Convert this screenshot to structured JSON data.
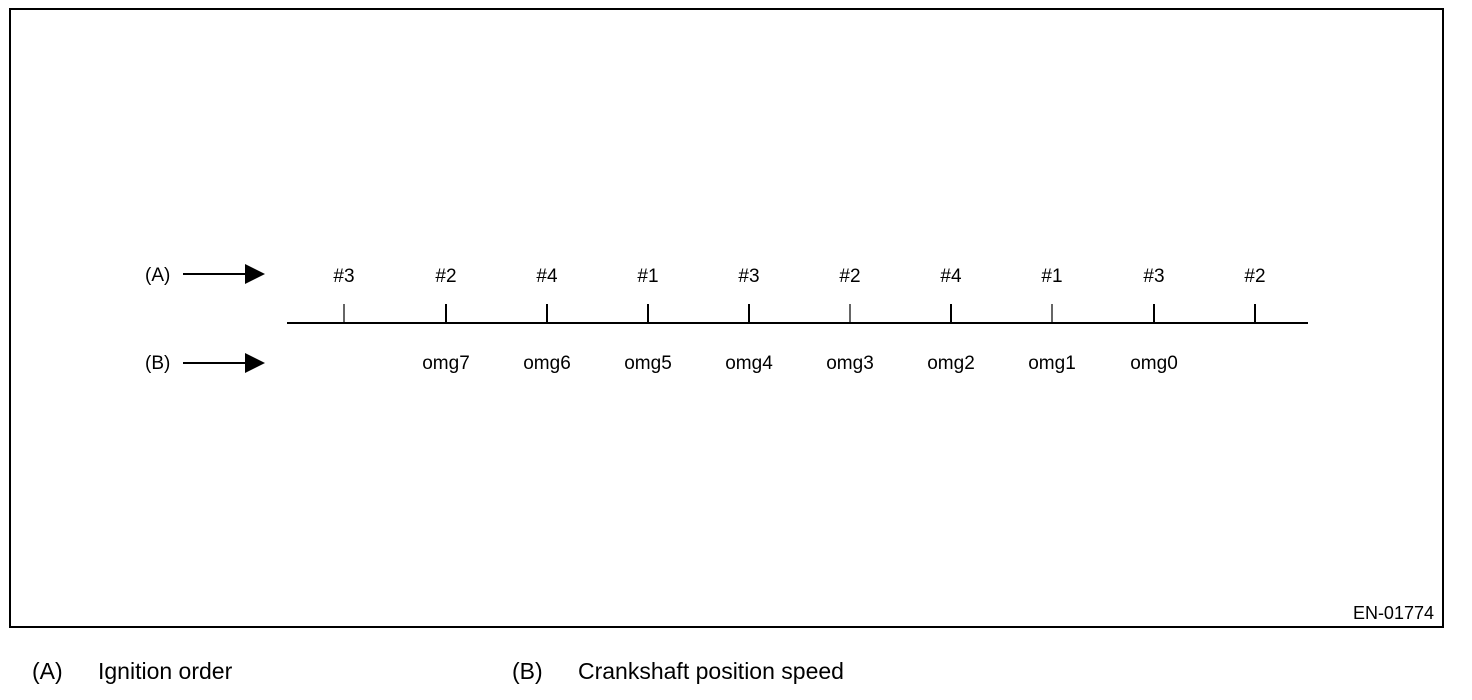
{
  "diagram": {
    "row_a": {
      "key": "(A)",
      "labels": [
        "#3",
        "#2",
        "#4",
        "#1",
        "#3",
        "#2",
        "#4",
        "#1",
        "#3",
        "#2"
      ]
    },
    "row_b": {
      "key": "(B)",
      "labels": [
        "omg7",
        "omg6",
        "omg5",
        "omg4",
        "omg3",
        "omg2",
        "omg1",
        "omg0"
      ]
    },
    "figure_id": "EN-01774"
  },
  "legend": [
    {
      "key": "(A)",
      "text": "Ignition order"
    },
    {
      "key": "(B)",
      "text": "Crankshaft position speed"
    }
  ]
}
